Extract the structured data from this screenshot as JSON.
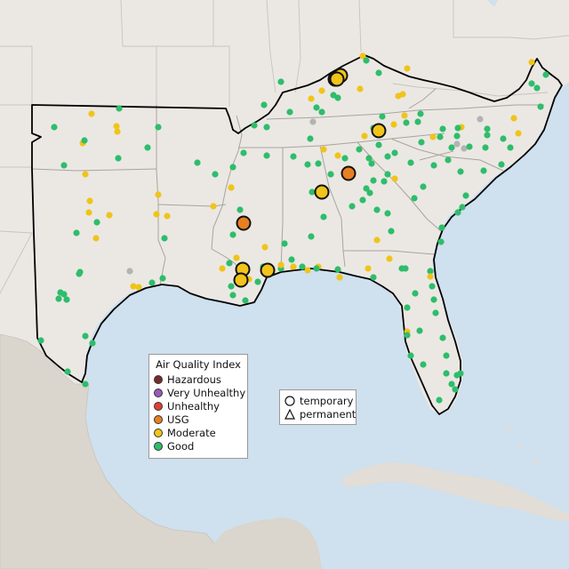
{
  "map": {
    "region": "Southeastern United States",
    "basemap_colors": {
      "land": "#ebe8e4",
      "water": "#cfe0ee",
      "mexico": "#d9d4cc",
      "border": "#c9c4bd",
      "outline": "#000000"
    },
    "category_colors": {
      "Good": "#2ebd6b",
      "Moderate": "#f0c419",
      "USG": "#e87f20",
      "Unhealthy": "#e0402f",
      "Very Unhealthy": "#9b59b6",
      "Hazardous": "#7b2a2a",
      "No data": "#b3b3b3"
    }
  },
  "legend_aqi": {
    "title": "Air Quality Index",
    "items": [
      {
        "label": "Hazardous",
        "color": "#7b2a2a"
      },
      {
        "label": "Very Unhealthy",
        "color": "#9b59b6"
      },
      {
        "label": "Unhealthy",
        "color": "#e0402f"
      },
      {
        "label": "USG",
        "color": "#e87f20"
      },
      {
        "label": "Moderate",
        "color": "#f0c419"
      },
      {
        "label": "Good",
        "color": "#2ebd6b"
      }
    ]
  },
  "legend_type": {
    "items": [
      {
        "label": "temporary",
        "symbol": "circle"
      },
      {
        "label": "permanent",
        "symbol": "triangle"
      }
    ]
  },
  "highlighted_monitors": [
    {
      "category": "Moderate"
    },
    {
      "category": "Moderate"
    },
    {
      "category": "Moderate"
    },
    {
      "category": "USG"
    },
    {
      "category": "Moderate"
    },
    {
      "category": "USG"
    },
    {
      "category": "Moderate"
    },
    {
      "category": "Moderate"
    },
    {
      "category": "Moderate"
    },
    {
      "category": "Moderate"
    }
  ]
}
